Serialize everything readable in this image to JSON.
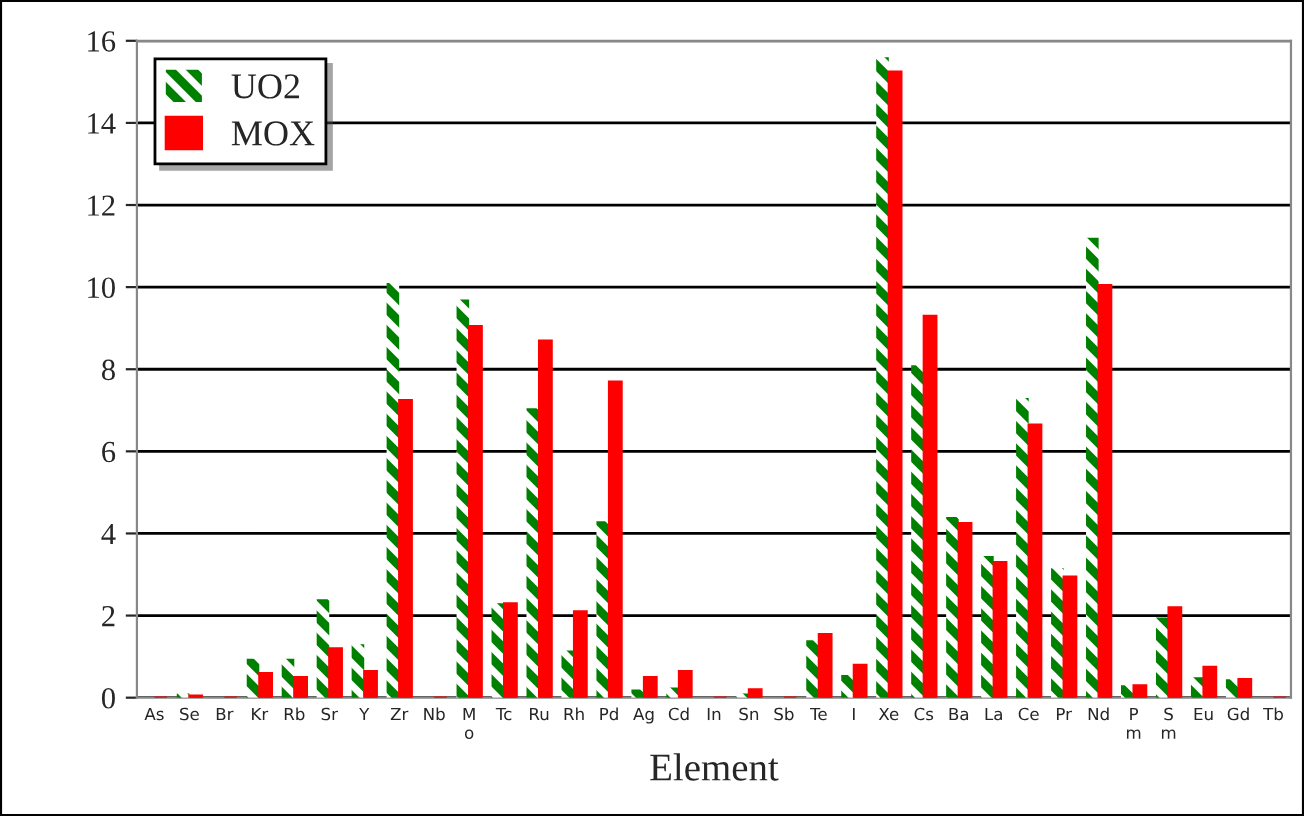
{
  "chart_data": {
    "type": "bar",
    "xlabel": "Element",
    "categories": [
      "As",
      "Se",
      "Br",
      "Kr",
      "Rb",
      "Sr",
      "Y",
      "Zr",
      "Nb",
      "M\no",
      "Tc",
      "Ru",
      "Rh",
      "Pd",
      "Ag",
      "Cd",
      "In",
      "Sn",
      "Sb",
      "Te",
      "I",
      "Xe",
      "Cs",
      "Ba",
      "La",
      "Ce",
      "Pr",
      "Nd",
      "P\nm",
      "S\nm",
      "Eu",
      "Gd",
      "Tb"
    ],
    "series": [
      {
        "name": "UO2",
        "color": "#008000",
        "values": [
          0,
          0.1,
          0,
          0.95,
          0.95,
          2.4,
          1.3,
          10.1,
          0,
          9.7,
          2.3,
          7.05,
          1.15,
          4.3,
          0.2,
          0.25,
          0,
          0.1,
          0,
          1.4,
          0.55,
          15.6,
          8.1,
          4.4,
          3.45,
          7.3,
          3.15,
          11.2,
          0.3,
          1.95,
          0.5,
          0.45,
          0
        ]
      },
      {
        "name": "MOX",
        "color": "#ff0000",
        "values": [
          0,
          0.05,
          0,
          0.6,
          0.5,
          1.2,
          0.65,
          7.25,
          0,
          9.05,
          2.3,
          8.7,
          2.1,
          7.7,
          0.5,
          0.65,
          0,
          0.2,
          0,
          1.55,
          0.8,
          15.25,
          9.3,
          4.25,
          3.3,
          6.65,
          2.95,
          10.05,
          0.3,
          2.2,
          0.75,
          0.45,
          0
        ]
      }
    ],
    "ylim": [
      0,
      16
    ],
    "yticks": [
      0,
      2,
      4,
      6,
      8,
      10,
      12,
      14,
      16
    ],
    "grid": "y",
    "legend": "top left"
  }
}
